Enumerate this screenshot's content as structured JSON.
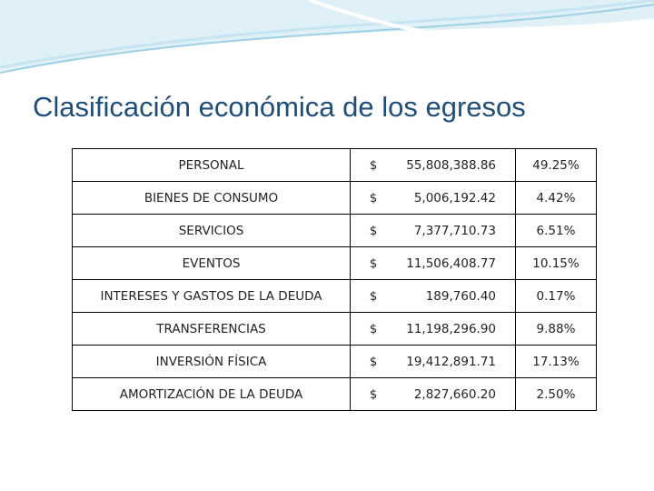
{
  "title": "Clasificación económica de los egresos",
  "table": {
    "rows": [
      [
        "PERSONAL",
        "$",
        "55,808,388.86",
        "49.25%"
      ],
      [
        "BIENES DE CONSUMO",
        "$",
        "5,006,192.42",
        "4.42%"
      ],
      [
        "SERVICIOS",
        "$",
        "7,377,710.73",
        "6.51%"
      ],
      [
        "EVENTOS",
        "$",
        "11,506,408.77",
        "10.15%"
      ],
      [
        "INTERESES Y GASTOS DE LA DEUDA",
        "$",
        "189,760.40",
        "0.17%"
      ],
      [
        "TRANSFERENCIAS",
        "$",
        "11,198,296.90",
        "9.88%"
      ],
      [
        "INVERSIÓN FÍSICA",
        "$",
        "19,412,891.71",
        "17.13%"
      ],
      [
        "AMORTIZACIÓN DE LA DEUDA",
        "$",
        "2,827,660.20",
        "2.50%"
      ]
    ]
  }
}
